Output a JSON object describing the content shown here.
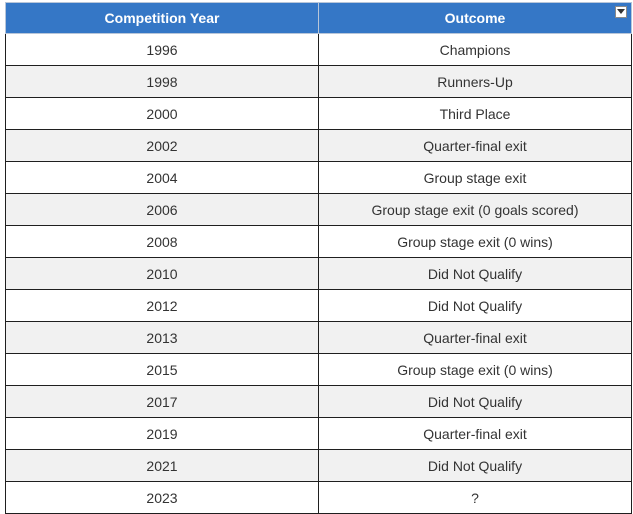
{
  "table": {
    "headers": [
      "Competition Year",
      "Outcome"
    ],
    "rows": [
      [
        "1996",
        "Champions"
      ],
      [
        "1998",
        "Runners-Up"
      ],
      [
        "2000",
        "Third Place"
      ],
      [
        "2002",
        "Quarter-final exit"
      ],
      [
        "2004",
        "Group stage exit"
      ],
      [
        "2006",
        "Group stage exit (0 goals scored)"
      ],
      [
        "2008",
        "Group stage exit (0 wins)"
      ],
      [
        "2010",
        "Did Not Qualify"
      ],
      [
        "2012",
        "Did Not Qualify"
      ],
      [
        "2013",
        "Quarter-final exit"
      ],
      [
        "2015",
        "Group stage exit (0 wins)"
      ],
      [
        "2017",
        "Did Not Qualify"
      ],
      [
        "2019",
        "Quarter-final exit"
      ],
      [
        "2021",
        "Did Not Qualify"
      ],
      [
        "2023",
        "?"
      ]
    ]
  },
  "colors": {
    "header_bg": "#3577c6",
    "header_text": "#ffffff",
    "row_alt_bg": "#f1f1f1"
  },
  "icons": {
    "header_filter": "dropdown-arrow-icon"
  }
}
